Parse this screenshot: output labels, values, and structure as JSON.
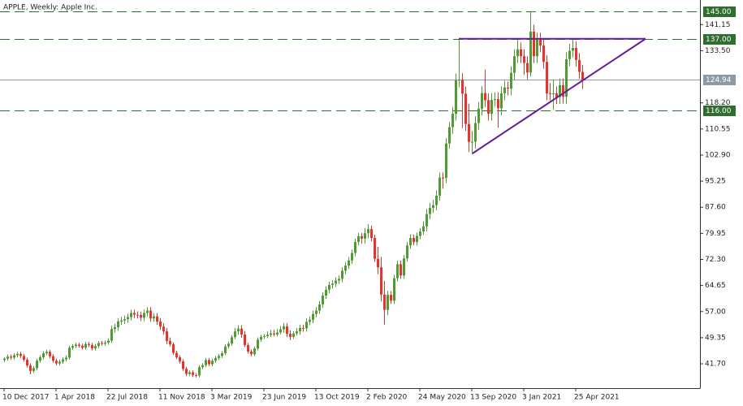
{
  "chart_data": {
    "type": "candlestick",
    "title": "APPLE, Weekly:  Apple Inc.",
    "bull_color": "#4f9a32",
    "bear_color": "#e2352b",
    "ylim": [
      34.56,
      148.37
    ],
    "xlim": [
      -1.25,
      214.25
    ],
    "yticks": [
      {
        "value": 141.15,
        "label": "141.15"
      },
      {
        "value": 133.5,
        "label": "133.50"
      },
      {
        "value": 118.2,
        "label": "118.20"
      },
      {
        "value": 110.55,
        "label": "110.55"
      },
      {
        "value": 102.9,
        "label": "102.90"
      },
      {
        "value": 95.25,
        "label": "95.25"
      },
      {
        "value": 87.6,
        "label": "87.60"
      },
      {
        "value": 79.95,
        "label": "79.95"
      },
      {
        "value": 72.3,
        "label": "72.30"
      },
      {
        "value": 64.65,
        "label": "64.65"
      },
      {
        "value": 57,
        "label": "57.00"
      },
      {
        "value": 49.35,
        "label": "49.35"
      },
      {
        "value": 41.7,
        "label": "41.70"
      }
    ],
    "xticks": [
      {
        "value": 0,
        "label": "10 Dec 2017"
      },
      {
        "value": 16,
        "label": "1 Apr 2018"
      },
      {
        "value": 32,
        "label": "22 Jul 2018"
      },
      {
        "value": 48,
        "label": "11 Nov 2018"
      },
      {
        "value": 64,
        "label": "3 Mar 2019"
      },
      {
        "value": 80,
        "label": "23 Jun 2019"
      },
      {
        "value": 96,
        "label": "13 Oct 2019"
      },
      {
        "value": 112,
        "label": "2 Feb 2020"
      },
      {
        "value": 128,
        "label": "24 May 2020"
      },
      {
        "value": 144,
        "label": "13 Sep 2020"
      },
      {
        "value": 160,
        "label": "3 Jan 2021"
      },
      {
        "value": 176,
        "label": "25 Apr 2021"
      }
    ],
    "levels": [
      {
        "value": 145,
        "label": "145.00",
        "color": "#2f6e2f",
        "dashed": true
      },
      {
        "value": 137,
        "label": "137.00",
        "color": "#2f6e2f",
        "dashed": true
      },
      {
        "value": 116,
        "label": "116.00",
        "color": "#2f6e2f",
        "dashed": true
      },
      {
        "value": 124.94,
        "label": "124.94",
        "color": "#8c9aa6",
        "dashed": false
      }
    ],
    "trendlines": [
      {
        "x": [
          140,
          197.5
        ],
        "y": [
          137,
          137
        ],
        "color": "#6a1b9a"
      },
      {
        "x": [
          144.25,
          197.5
        ],
        "y": [
          103.4,
          137
        ],
        "color": "#6a1b9a"
      }
    ],
    "candles": [
      [
        42.8,
        43.6,
        42.2,
        43.2
      ],
      [
        43.2,
        44.4,
        42.6,
        43.8
      ],
      [
        43.8,
        44.4,
        42.9,
        43.5
      ],
      [
        43.5,
        44.8,
        42.9,
        44.2
      ],
      [
        44.2,
        45.2,
        43.6,
        44.6
      ],
      [
        44.6,
        45.2,
        43.4,
        44.0
      ],
      [
        44.0,
        44.6,
        42.3,
        42.9
      ],
      [
        42.9,
        43.5,
        40.6,
        41.2
      ],
      [
        41.2,
        41.8,
        38.6,
        39.6
      ],
      [
        39.6,
        41.0,
        39.0,
        40.4
      ],
      [
        40.4,
        43.2,
        39.8,
        42.6
      ],
      [
        42.6,
        44.2,
        42.0,
        43.6
      ],
      [
        43.6,
        45.4,
        43.0,
        44.8
      ],
      [
        44.8,
        45.8,
        44.2,
        45.2
      ],
      [
        45.2,
        45.8,
        43.3,
        43.9
      ],
      [
        43.9,
        44.5,
        42.0,
        42.6
      ],
      [
        42.6,
        43.2,
        41.2,
        41.8
      ],
      [
        41.8,
        42.9,
        41.2,
        42.3
      ],
      [
        42.3,
        43.6,
        41.7,
        43.0
      ],
      [
        43.0,
        44.1,
        42.4,
        43.5
      ],
      [
        43.5,
        47.0,
        42.9,
        46.4
      ],
      [
        46.4,
        47.5,
        45.8,
        46.9
      ],
      [
        46.9,
        47.9,
        46.3,
        47.3
      ],
      [
        47.3,
        47.9,
        46.4,
        47.0
      ],
      [
        47.0,
        47.6,
        45.8,
        46.4
      ],
      [
        46.4,
        48.1,
        45.8,
        47.5
      ],
      [
        47.5,
        48.1,
        46.6,
        47.2
      ],
      [
        47.2,
        47.8,
        45.6,
        46.2
      ],
      [
        46.2,
        47.5,
        45.6,
        46.9
      ],
      [
        46.9,
        48.4,
        46.3,
        47.8
      ],
      [
        47.8,
        48.4,
        47.0,
        47.6
      ],
      [
        47.6,
        48.5,
        47.0,
        47.9
      ],
      [
        47.9,
        49.1,
        47.3,
        48.5
      ],
      [
        48.5,
        52.9,
        47.9,
        51.9
      ],
      [
        51.9,
        53.4,
        50.9,
        52.4
      ],
      [
        52.4,
        55.1,
        51.4,
        54.1
      ],
      [
        54.1,
        55.4,
        53.1,
        54.4
      ],
      [
        54.4,
        55.8,
        53.4,
        54.8
      ],
      [
        54.8,
        56.4,
        53.8,
        55.4
      ],
      [
        55.4,
        57.6,
        54.4,
        56.6
      ],
      [
        56.6,
        57.6,
        55.1,
        56.1
      ],
      [
        56.1,
        57.1,
        55.0,
        56.0
      ],
      [
        56.0,
        57.0,
        54.2,
        55.2
      ],
      [
        55.2,
        57.6,
        54.2,
        56.6
      ],
      [
        56.6,
        58.3,
        55.6,
        57.3
      ],
      [
        57.3,
        58.3,
        54.0,
        55.0
      ],
      [
        55.0,
        56.6,
        54.0,
        55.6
      ],
      [
        55.6,
        56.6,
        53.1,
        54.1
      ],
      [
        54.1,
        55.1,
        51.6,
        52.6
      ],
      [
        52.6,
        53.6,
        50.2,
        51.2
      ],
      [
        51.2,
        52.2,
        47.4,
        48.4
      ],
      [
        48.4,
        49.4,
        46.8,
        47.4
      ],
      [
        47.4,
        48.0,
        44.3,
        44.9
      ],
      [
        44.9,
        45.5,
        43.0,
        43.6
      ],
      [
        43.6,
        44.2,
        41.8,
        42.4
      ],
      [
        42.4,
        43.0,
        39.6,
        40.2
      ],
      [
        40.2,
        40.8,
        38.1,
        38.7
      ],
      [
        38.7,
        39.8,
        38.1,
        39.2
      ],
      [
        39.2,
        39.8,
        37.8,
        38.4
      ],
      [
        38.4,
        39.0,
        37.7,
        38.3
      ],
      [
        38.3,
        41.3,
        37.7,
        40.7
      ],
      [
        40.7,
        41.9,
        40.1,
        41.3
      ],
      [
        41.3,
        43.4,
        40.7,
        42.8
      ],
      [
        42.8,
        43.4,
        41.0,
        41.6
      ],
      [
        41.6,
        43.2,
        41.0,
        42.6
      ],
      [
        42.6,
        44.0,
        42.0,
        43.4
      ],
      [
        43.4,
        44.6,
        42.8,
        44.0
      ],
      [
        44.0,
        45.4,
        43.4,
        44.8
      ],
      [
        44.8,
        47.4,
        44.2,
        46.8
      ],
      [
        46.8,
        48.2,
        46.2,
        47.6
      ],
      [
        47.6,
        50.1,
        47.0,
        49.5
      ],
      [
        49.5,
        52.2,
        48.9,
        51.2
      ],
      [
        51.2,
        53.0,
        50.2,
        52.0
      ],
      [
        52.0,
        53.0,
        49.3,
        50.3
      ],
      [
        50.3,
        51.3,
        46.6,
        47.2
      ],
      [
        47.2,
        47.8,
        44.7,
        45.3
      ],
      [
        45.3,
        45.9,
        43.9,
        44.5
      ],
      [
        44.5,
        46.8,
        43.9,
        46.2
      ],
      [
        46.2,
        49.4,
        45.6,
        48.8
      ],
      [
        48.8,
        50.2,
        48.2,
        49.6
      ],
      [
        49.6,
        50.4,
        49.0,
        49.8
      ],
      [
        49.8,
        51.2,
        49.2,
        50.2
      ],
      [
        50.2,
        51.6,
        49.6,
        50.6
      ],
      [
        50.6,
        51.6,
        49.7,
        50.3
      ],
      [
        50.3,
        51.9,
        49.7,
        50.9
      ],
      [
        50.9,
        52.8,
        50.3,
        51.8
      ],
      [
        51.8,
        53.7,
        50.8,
        52.7
      ],
      [
        52.7,
        53.7,
        49.5,
        50.5
      ],
      [
        50.5,
        51.5,
        48.6,
        49.6
      ],
      [
        49.6,
        51.2,
        49.0,
        50.6
      ],
      [
        50.6,
        52.2,
        50.0,
        51.2
      ],
      [
        51.2,
        53.2,
        50.2,
        52.2
      ],
      [
        52.2,
        53.2,
        51.1,
        52.1
      ],
      [
        52.1,
        55.0,
        51.1,
        54.0
      ],
      [
        54.0,
        55.6,
        53.0,
        54.6
      ],
      [
        54.6,
        57.3,
        53.6,
        56.3
      ],
      [
        56.3,
        58.3,
        55.3,
        57.3
      ],
      [
        57.3,
        60.1,
        56.3,
        59.1
      ],
      [
        59.1,
        62.7,
        58.1,
        61.7
      ],
      [
        61.7,
        64.4,
        60.7,
        63.4
      ],
      [
        63.4,
        65.8,
        62.4,
        64.8
      ],
      [
        64.8,
        66.2,
        63.8,
        65.2
      ],
      [
        65.2,
        67.1,
        64.2,
        66.1
      ],
      [
        66.1,
        67.6,
        65.1,
        66.6
      ],
      [
        66.6,
        70.0,
        65.6,
        69.0
      ],
      [
        69.0,
        71.5,
        68.0,
        70.5
      ],
      [
        70.5,
        73.0,
        69.5,
        72.0
      ],
      [
        72.0,
        75.2,
        71.0,
        74.2
      ],
      [
        74.2,
        78.4,
        73.2,
        77.4
      ],
      [
        77.4,
        80.1,
        76.4,
        79.1
      ],
      [
        79.1,
        80.1,
        76.9,
        78.4
      ],
      [
        78.4,
        81.5,
        76.9,
        80.0
      ],
      [
        80.0,
        82.7,
        78.5,
        81.2
      ],
      [
        81.2,
        82.2,
        77.6,
        78.6
      ],
      [
        78.6,
        79.6,
        71.5,
        72.5
      ],
      [
        72.5,
        76.0,
        68.0,
        70.0
      ],
      [
        70.0,
        73.0,
        60.0,
        62.0
      ],
      [
        62.0,
        66.0,
        53.2,
        57.5
      ],
      [
        57.5,
        63.0,
        56.0,
        61.9
      ],
      [
        61.9,
        63.0,
        59.2,
        60.2
      ],
      [
        60.2,
        67.8,
        59.2,
        66.8
      ],
      [
        66.8,
        71.9,
        65.8,
        70.9
      ],
      [
        70.9,
        72.0,
        66.6,
        67.6
      ],
      [
        67.6,
        73.6,
        66.6,
        72.6
      ],
      [
        72.6,
        77.4,
        71.6,
        76.4
      ],
      [
        76.4,
        79.6,
        75.4,
        78.6
      ],
      [
        78.6,
        79.6,
        76.4,
        77.4
      ],
      [
        77.4,
        80.2,
        76.4,
        79.2
      ],
      [
        79.2,
        81.5,
        78.2,
        80.5
      ],
      [
        80.5,
        83.5,
        79.5,
        82.0
      ],
      [
        82.0,
        87.1,
        80.5,
        85.6
      ],
      [
        85.6,
        88.9,
        84.1,
        87.4
      ],
      [
        87.4,
        89.7,
        85.9,
        88.2
      ],
      [
        88.2,
        92.5,
        86.7,
        91.0
      ],
      [
        91.0,
        97.8,
        89.5,
        96.3
      ],
      [
        96.3,
        97.8,
        93.0,
        96.2
      ],
      [
        96.2,
        107.8,
        94.7,
        106.3
      ],
      [
        106.3,
        112.6,
        104.8,
        111.1
      ],
      [
        111.1,
        117.0,
        109.1,
        115.0
      ],
      [
        115.0,
        126.8,
        113.0,
        124.8
      ],
      [
        124.8,
        137.2,
        122.8,
        125.0
      ],
      [
        125.0,
        127.0,
        110.8,
        120.9
      ],
      [
        120.9,
        122.9,
        110.0,
        112.0
      ],
      [
        112.0,
        118.0,
        103.8,
        106.8
      ],
      [
        106.8,
        110.0,
        103.1,
        106.8
      ],
      [
        106.8,
        114.3,
        104.8,
        112.3
      ],
      [
        112.3,
        118.5,
        110.3,
        116.5
      ],
      [
        116.5,
        123.1,
        114.5,
        121.1
      ],
      [
        121.1,
        128.0,
        117.0,
        119.0
      ],
      [
        119.0,
        121.0,
        113.0,
        115.0
      ],
      [
        115.0,
        121.1,
        113.0,
        119.1
      ],
      [
        119.1,
        121.3,
        117.1,
        119.3
      ],
      [
        119.3,
        121.3,
        111.0,
        116.6
      ],
      [
        116.6,
        123.0,
        114.6,
        121.0
      ],
      [
        121.0,
        124.7,
        119.0,
        122.7
      ],
      [
        122.7,
        124.4,
        120.4,
        122.4
      ],
      [
        122.4,
        129.0,
        120.4,
        127.0
      ],
      [
        127.0,
        133.9,
        125.0,
        131.9
      ],
      [
        131.9,
        137.0,
        129.9,
        133.9
      ],
      [
        133.9,
        135.9,
        129.9,
        131.9
      ],
      [
        131.9,
        133.9,
        126.4,
        129.9
      ],
      [
        129.9,
        131.9,
        125.1,
        127.1
      ],
      [
        127.1,
        145.1,
        126.0,
        139.1
      ],
      [
        139.1,
        141.1,
        129.9,
        131.9
      ],
      [
        131.9,
        138.8,
        129.9,
        136.8
      ],
      [
        136.8,
        138.8,
        133.0,
        135.0
      ],
      [
        135.0,
        137.0,
        128.2,
        130.2
      ],
      [
        130.2,
        132.2,
        119.0,
        121.0
      ],
      [
        121.0,
        124.0,
        118.9,
        120.9
      ],
      [
        120.9,
        125.0,
        116.2,
        121.0
      ],
      [
        121.0,
        123.0,
        117.9,
        119.9
      ],
      [
        119.9,
        125.4,
        117.9,
        123.4
      ],
      [
        123.4,
        125.4,
        118.0,
        120.0
      ],
      [
        120.0,
        133.0,
        118.0,
        131.0
      ],
      [
        131.0,
        135.5,
        129.0,
        133.5
      ],
      [
        133.5,
        137.1,
        131.5,
        134.3
      ],
      [
        134.3,
        136.3,
        128.8,
        130.8
      ],
      [
        130.8,
        132.8,
        125.3,
        127.3
      ],
      [
        127.3,
        129.3,
        122.3,
        124.94
      ]
    ]
  }
}
